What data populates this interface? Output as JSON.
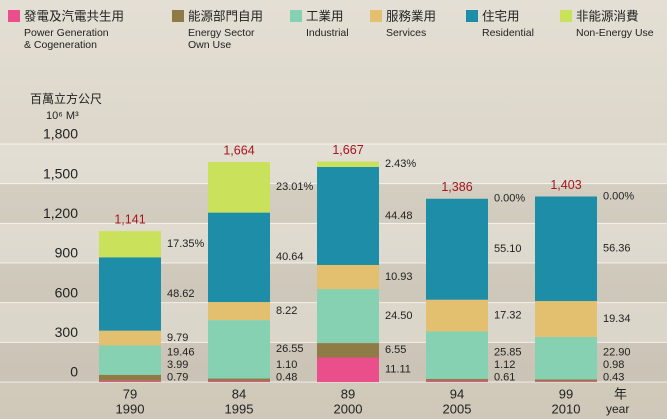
{
  "chart_data": {
    "type": "stacked_bar_percent",
    "y_axis_label": [
      "百萬立方公尺",
      "10⁶ M³"
    ],
    "x_axis_label": [
      "年",
      "year"
    ],
    "categories": [
      "79",
      "84",
      "89",
      "94",
      "99"
    ],
    "category_years": [
      "1990",
      "1995",
      "2000",
      "2005",
      "2010"
    ],
    "totals": [
      1141,
      1664,
      1667,
      1386,
      1403
    ],
    "total_labels": [
      "1,141",
      "1,664",
      "1,667",
      "1,386",
      "1,403"
    ],
    "total_color": "#a8141c",
    "series": [
      {
        "name": "發電及汽電共生用",
        "name_en": [
          "Power Generation",
          "& Cogeneration"
        ],
        "color": "#ea4f8c",
        "values": [
          0.79,
          0.48,
          11.11,
          0.61,
          0.43
        ],
        "value_labels": [
          "0.79",
          "0.48",
          "11.11",
          "0.61",
          "0.43"
        ]
      },
      {
        "name": "能源部門自用",
        "name_en": [
          "Energy Sector",
          "Own Use"
        ],
        "color": "#8e7b45",
        "values": [
          3.99,
          1.1,
          6.55,
          1.12,
          0.98
        ],
        "value_labels": [
          "3.99",
          "1.10",
          "6.55",
          "1.12",
          "0.98"
        ]
      },
      {
        "name": "工業用",
        "name_en": [
          "Industrial"
        ],
        "color": "#86d1b1",
        "values": [
          19.46,
          26.55,
          24.5,
          25.85,
          22.9
        ],
        "value_labels": [
          "19.46",
          "26.55",
          "24.50",
          "25.85",
          "22.90"
        ]
      },
      {
        "name": "服務業用",
        "name_en": [
          "Services"
        ],
        "color": "#e2c070",
        "values": [
          9.79,
          8.22,
          10.93,
          17.32,
          19.34
        ],
        "value_labels": [
          "9.79",
          "8.22",
          "10.93",
          "17.32",
          "19.34"
        ]
      },
      {
        "name": "住宅用",
        "name_en": [
          "Residential"
        ],
        "color": "#1e8da8",
        "values": [
          48.62,
          40.64,
          44.48,
          55.1,
          56.36
        ],
        "value_labels": [
          "48.62",
          "40.64",
          "44.48",
          "55.10",
          "56.36"
        ]
      },
      {
        "name": "非能源消費",
        "name_en": [
          "Non-Energy Use"
        ],
        "color": "#c9e15b",
        "values": [
          17.35,
          23.01,
          2.43,
          0.0,
          0.0
        ],
        "value_labels": [
          "17.35%",
          "23.01%",
          "2.43%",
          "0.00%",
          "0.00%"
        ]
      }
    ],
    "ylim": [
      0,
      1800
    ],
    "yticks": [
      0,
      300,
      600,
      900,
      {
        "value": 1200,
        "label": "1,200"
      },
      {
        "value": 1500,
        "label": "1,500"
      },
      {
        "value": 1800,
        "label": "1,800"
      }
    ]
  }
}
